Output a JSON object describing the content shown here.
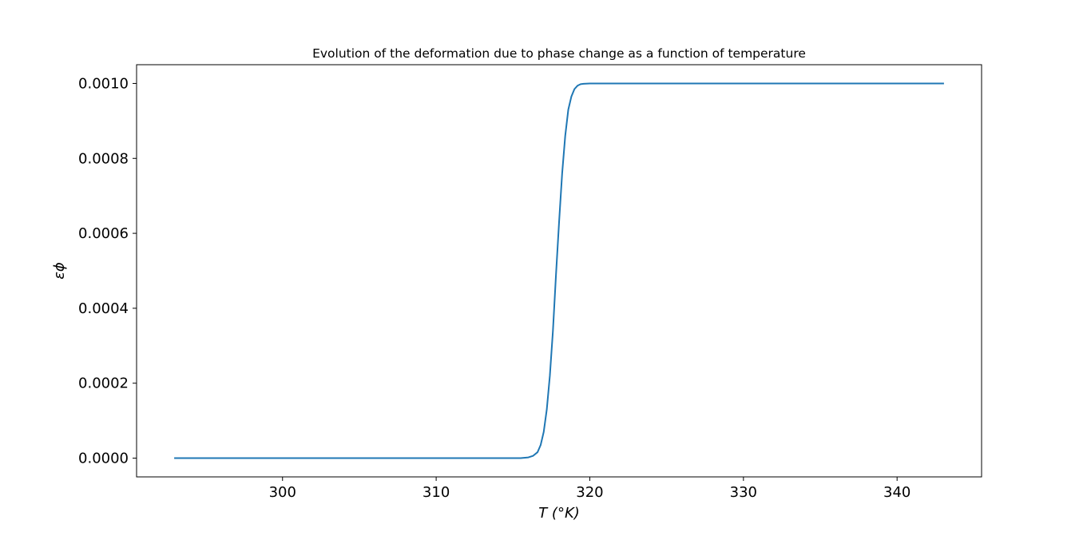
{
  "chart_data": {
    "type": "line",
    "title": "Evolution of the deformation due to phase change as a function of temperature",
    "xlabel": "T (°K)",
    "ylabel": "εϕ",
    "xlim": [
      290.5,
      345.5
    ],
    "ylim": [
      -5e-05,
      0.00105
    ],
    "xticks": [
      300,
      310,
      320,
      330,
      340
    ],
    "xtick_labels": [
      "300",
      "310",
      "320",
      "330",
      "340"
    ],
    "yticks": [
      0.0,
      0.0002,
      0.0004,
      0.0006,
      0.0008,
      0.001
    ],
    "ytick_labels": [
      "0.0000",
      "0.0002",
      "0.0004",
      "0.0006",
      "0.0008",
      "0.0010"
    ],
    "grid": false,
    "series": [
      {
        "color": "#1f77b4",
        "x": [
          293,
          300,
          305,
          310,
          313,
          315,
          315.5,
          316,
          316.3,
          316.6,
          316.8,
          317.0,
          317.2,
          317.4,
          317.6,
          317.8,
          318.0,
          318.2,
          318.4,
          318.6,
          318.8,
          319.0,
          319.2,
          319.4,
          319.6,
          320.0,
          320.5,
          321,
          325,
          330,
          335,
          340,
          343
        ],
        "y": [
          0.0,
          0.0,
          0.0,
          0.0,
          0.0,
          0.0,
          0.0,
          2e-06,
          6e-06,
          1.6e-05,
          3.5e-05,
          7e-05,
          0.00013,
          0.00022,
          0.00034,
          0.00049,
          0.00063,
          0.00076,
          0.00086,
          0.00093,
          0.000965,
          0.000985,
          0.000994,
          0.000998,
          0.000999,
          0.001,
          0.001,
          0.001,
          0.001,
          0.001,
          0.001,
          0.001,
          0.001
        ]
      }
    ]
  }
}
